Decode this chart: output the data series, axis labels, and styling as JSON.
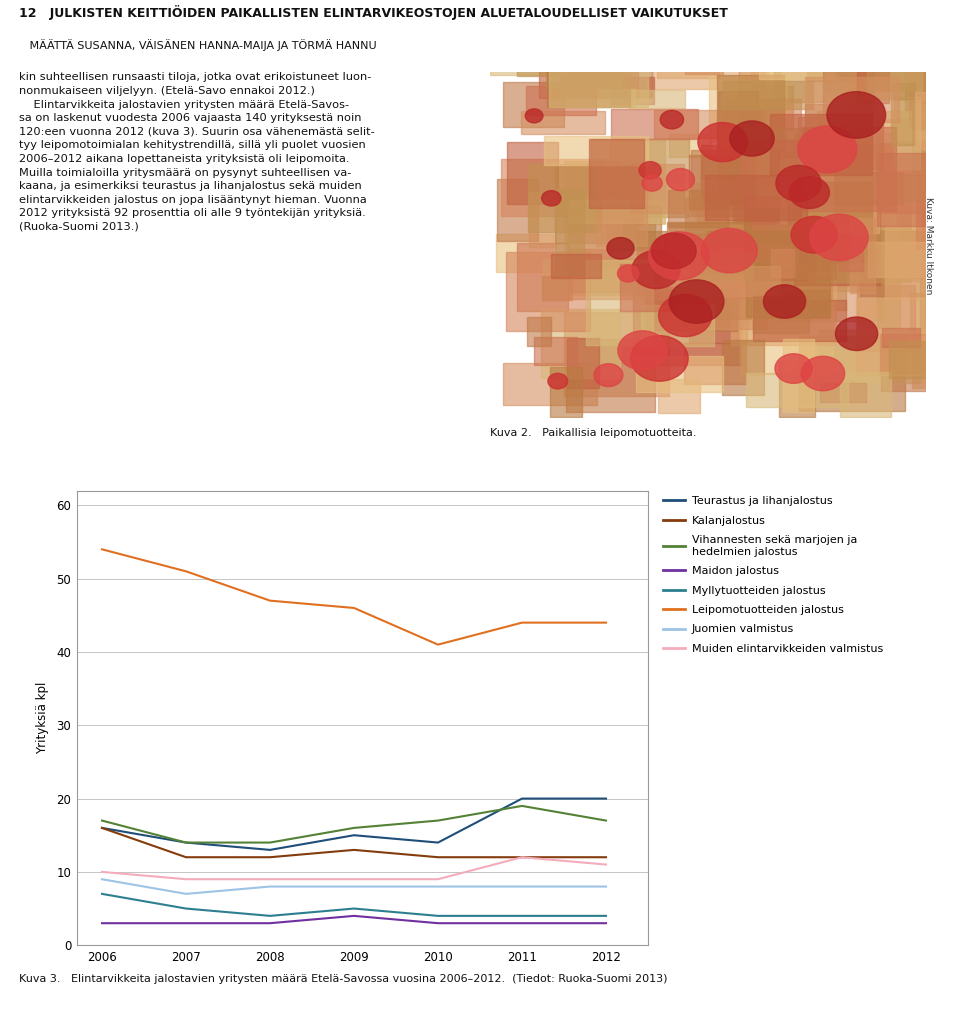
{
  "years": [
    2006,
    2007,
    2008,
    2009,
    2010,
    2011,
    2012
  ],
  "series": [
    {
      "label": "Teurastus ja lihanjalostus",
      "color": "#1F4E79",
      "data": [
        16,
        14,
        13,
        15,
        14,
        20,
        20
      ]
    },
    {
      "label": "Kalanjalostus",
      "color": "#843C0C",
      "data": [
        16,
        12,
        12,
        13,
        12,
        12,
        12
      ]
    },
    {
      "label": "Vihannesten sekä marjojen ja\nhedelmien jalostus",
      "color": "#538135",
      "data": [
        17,
        14,
        14,
        16,
        17,
        19,
        17
      ]
    },
    {
      "label": "Maidon jalostus",
      "color": "#7030A0",
      "data": [
        3,
        3,
        3,
        4,
        3,
        3,
        3
      ]
    },
    {
      "label": "Myllytuotteiden jalostus",
      "color": "#2D7F8F",
      "data": [
        7,
        5,
        4,
        5,
        4,
        4,
        4
      ]
    },
    {
      "label": "Leipomotuotteiden jalostus",
      "color": "#E07020",
      "data": [
        54,
        51,
        47,
        46,
        41,
        44,
        44
      ]
    },
    {
      "label": "Juomien valmistus",
      "color": "#9DC3E6",
      "data": [
        9,
        7,
        8,
        8,
        8,
        8,
        8
      ]
    },
    {
      "label": "Muiden elintarvikkeiden valmistus",
      "color": "#F4ACBC",
      "data": [
        10,
        9,
        9,
        9,
        9,
        12,
        11
      ]
    }
  ],
  "ylabel": "Yrityksiä kpl",
  "ylim": [
    0,
    62
  ],
  "yticks": [
    0,
    10,
    20,
    30,
    40,
    50,
    60
  ],
  "title_num": "12",
  "title_bold": "JULKISTEN KEITTIÖIDEN PAIKALLISTEN ELINTARVIKEOSTOJEN ALUETALOUDELLISET VAIKUTUKSET",
  "title_sub": "MÄÄTTÄ SUSANNA, VÄISÄNEN HANNA-MAIJA JA TÖRMÄ HANNU",
  "body_text_left": "kin suhteellisen runsaasti tiloja, jotka ovat erikoistuneet luon-\nnonmukaiseen viljelyyn. (Etelä-Savo ennakoi 2012.)\n    Elintarvikkeita jalostavien yritysten määrä Etelä-Savos-\nsa on laskenut vuodesta 2006 vajaasta 140 yrityksestä noin\n120:een vuonna 2012 (kuva 3). Suurin osa vähenemästä selit-\ntyy leipomotoimialan kehitystrendillä, sillä yli puolet vuosien\n2006–2012 aikana lopettaneista yrityksistä oli leipomoita.\nMuilla toimialoilla yritysmäärä on pysynyt suhteellisen va-\nkaana, ja esimerkiksi teurastus ja lihanjalostus sekä muiden\nelintarvikkeiden jalostus on jopa lisääntynyt hieman. Vuonna\n2012 yrityksistä 92 prosenttia oli alle 9 työntekijän yrityksiä.\n(Ruoka-Suomi 2013.)",
  "caption_kuva2": "Kuva 2.   Paikallisia leipomotuotteita.",
  "caption_kuva3": "Kuva 3.   Elintarvikkeita jalostavien yritysten määrä Etelä-Savossa vuosina 2006–2012.  (Tiedot: Ruoka-Suomi 2013)",
  "photo_credit": "Kuva: Markku Itkonen",
  "photo_color_top": "#C8A870",
  "photo_color_mid": "#D4855A",
  "background_color": "#FFFFFF",
  "grid_color": "#BBBBBB",
  "border_color": "#999999",
  "page_border_color": "#BBBBBB"
}
